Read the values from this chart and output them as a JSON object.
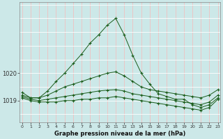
{
  "title": "Graphe pression niveau de la mer (hPa)",
  "bg_color": "#cce8e8",
  "grid_color_v": "#f0c0c0",
  "grid_color_h": "#ffffff",
  "line_color": "#1a5c1a",
  "x_ticks": [
    0,
    1,
    2,
    3,
    4,
    5,
    6,
    7,
    8,
    9,
    10,
    11,
    12,
    13,
    14,
    15,
    16,
    17,
    18,
    19,
    20,
    21,
    22,
    23
  ],
  "y_ticks": [
    1019,
    1020
  ],
  "ylim": [
    1018.2,
    1022.6
  ],
  "xlim": [
    -0.3,
    23.3
  ],
  "series": [
    {
      "x": [
        0,
        1,
        2,
        3,
        4,
        5,
        6,
        7,
        8,
        9,
        10,
        11,
        12,
        13,
        14,
        15,
        16,
        17,
        18,
        19,
        20,
        21,
        22,
        23
      ],
      "y": [
        1019.3,
        1019.1,
        1019.1,
        1019.35,
        1019.7,
        1020.0,
        1020.35,
        1020.7,
        1021.1,
        1021.4,
        1021.75,
        1022.0,
        1021.4,
        1020.65,
        1020.0,
        1019.6,
        1019.25,
        1019.15,
        1019.05,
        1019.05,
        1018.85,
        1018.75,
        1018.85,
        1019.1
      ]
    },
    {
      "x": [
        0,
        1,
        2,
        3,
        4,
        5,
        6,
        7,
        8,
        9,
        10,
        11,
        12,
        13,
        14,
        15,
        16,
        17,
        18,
        19,
        20,
        21,
        22,
        23
      ],
      "y": [
        1019.2,
        1019.1,
        1019.1,
        1019.2,
        1019.35,
        1019.5,
        1019.6,
        1019.7,
        1019.8,
        1019.9,
        1020.0,
        1020.05,
        1019.9,
        1019.7,
        1019.5,
        1019.4,
        1019.35,
        1019.3,
        1019.25,
        1019.2,
        1019.15,
        1019.1,
        1019.2,
        1019.4
      ]
    },
    {
      "x": [
        0,
        1,
        2,
        3,
        4,
        5,
        6,
        7,
        8,
        9,
        10,
        11,
        12,
        13,
        14,
        15,
        16,
        17,
        18,
        19,
        20,
        21,
        22,
        23
      ],
      "y": [
        1019.15,
        1019.05,
        1019.0,
        1019.05,
        1019.1,
        1019.15,
        1019.2,
        1019.25,
        1019.3,
        1019.35,
        1019.38,
        1019.4,
        1019.35,
        1019.25,
        1019.2,
        1019.15,
        1019.1,
        1019.05,
        1019.0,
        1018.95,
        1018.9,
        1018.85,
        1018.95,
        1019.2
      ]
    },
    {
      "x": [
        0,
        1,
        2,
        3,
        4,
        5,
        6,
        7,
        8,
        9,
        10,
        11,
        12,
        13,
        14,
        15,
        16,
        17,
        18,
        19,
        20,
        21,
        22,
        23
      ],
      "y": [
        1019.1,
        1019.0,
        1018.95,
        1018.95,
        1018.95,
        1019.0,
        1019.0,
        1019.05,
        1019.05,
        1019.1,
        1019.1,
        1019.15,
        1019.1,
        1019.05,
        1019.0,
        1018.95,
        1018.9,
        1018.85,
        1018.8,
        1018.75,
        1018.7,
        1018.65,
        1018.75,
        1019.05
      ]
    }
  ]
}
